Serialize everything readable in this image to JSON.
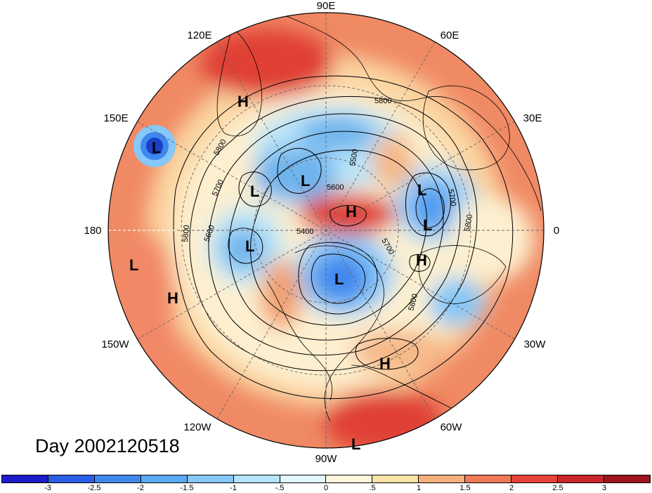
{
  "title": "Day 2002120518",
  "longitude_labels": {
    "lon_90e": "90E",
    "lon_60e": "60E",
    "lon_30e": "30E",
    "lon_0": "0",
    "lon_30w": "30W",
    "lon_60w": "60W",
    "lon_90w": "90W",
    "lon_120w": "120W",
    "lon_150w": "150W",
    "lon_180": "180",
    "lon_150e": "150E",
    "lon_120e": "120E"
  },
  "pressure_centers": [
    {
      "type": "L",
      "label": "L"
    },
    {
      "type": "L",
      "label": "L"
    },
    {
      "type": "L",
      "label": "L"
    },
    {
      "type": "L",
      "label": "L"
    },
    {
      "type": "L",
      "label": "L"
    },
    {
      "type": "L",
      "label": "L"
    },
    {
      "type": "L",
      "label": "L"
    },
    {
      "type": "L",
      "label": "L"
    },
    {
      "type": "H",
      "label": "H"
    },
    {
      "type": "H",
      "label": "H"
    },
    {
      "type": "H",
      "label": "H"
    },
    {
      "type": "H",
      "label": "H"
    },
    {
      "type": "H",
      "label": "H"
    },
    {
      "type": "L",
      "label": "L"
    }
  ],
  "contour_labels": [
    "5800",
    "5800",
    "5700",
    "5600",
    "5500",
    "5400",
    "5700",
    "5700",
    "5800",
    "5800",
    "5800",
    "5600"
  ],
  "colorbar": {
    "ticks": [
      "-3",
      "-2.5",
      "-2",
      "-1.5",
      "-1",
      "-.5",
      "0",
      ".5",
      "1",
      "1.5",
      "2",
      "2.5",
      "3"
    ],
    "colors": [
      "#1c1cc8",
      "#2a5ee6",
      "#3f88ee",
      "#5aaaf4",
      "#86c8f8",
      "#b4e4fb",
      "#e2f6fd",
      "#fdf8dc",
      "#fbe3a6",
      "#f6b07c",
      "#f07a58",
      "#e54238",
      "#c8262a",
      "#a01420"
    ]
  }
}
